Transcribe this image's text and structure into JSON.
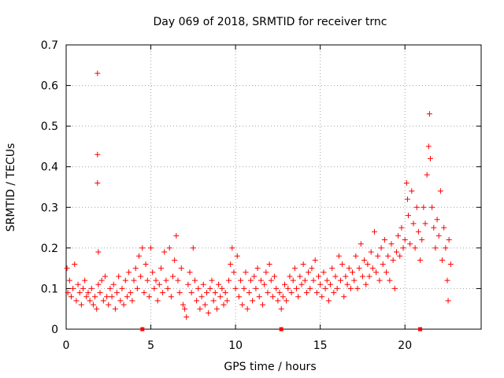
{
  "chart_data": {
    "type": "scatter",
    "title": "Day 069 of 2018, SRMTID for receiver trnc",
    "xlabel": "GPS time / hours",
    "ylabel": "SRMTID / TECUs",
    "xlim": [
      0,
      24.5
    ],
    "ylim": [
      0,
      0.7
    ],
    "xticks": [
      0,
      5,
      10,
      15,
      20
    ],
    "yticks": [
      0,
      0.1,
      0.2,
      0.3,
      0.4,
      0.5,
      0.6,
      0.7
    ],
    "xtick_labels": [
      "0",
      "5",
      "10",
      "15",
      "20"
    ],
    "ytick_labels": [
      "0",
      "0.1",
      "0.2",
      "0.3",
      "0.4",
      "0.5",
      "0.6",
      "0.7"
    ],
    "grid": true,
    "marker": "+",
    "color": "#ff0000",
    "gap_markers_x": [
      4.5,
      12.7,
      20.9
    ],
    "points": [
      [
        0.05,
        0.15
      ],
      [
        0.1,
        0.09
      ],
      [
        0.2,
        0.12
      ],
      [
        0.3,
        0.08
      ],
      [
        0.4,
        0.1
      ],
      [
        0.5,
        0.16
      ],
      [
        0.6,
        0.07
      ],
      [
        0.7,
        0.11
      ],
      [
        0.8,
        0.09
      ],
      [
        0.9,
        0.06
      ],
      [
        1.0,
        0.1
      ],
      [
        1.1,
        0.12
      ],
      [
        1.2,
        0.08
      ],
      [
        1.3,
        0.09
      ],
      [
        1.4,
        0.07
      ],
      [
        1.5,
        0.1
      ],
      [
        1.6,
        0.06
      ],
      [
        1.7,
        0.08
      ],
      [
        1.8,
        0.05
      ],
      [
        1.9,
        0.11
      ],
      [
        1.85,
        0.63
      ],
      [
        1.85,
        0.43
      ],
      [
        1.85,
        0.36
      ],
      [
        1.9,
        0.19
      ],
      [
        2.0,
        0.09
      ],
      [
        2.1,
        0.12
      ],
      [
        2.2,
        0.07
      ],
      [
        2.3,
        0.13
      ],
      [
        2.4,
        0.08
      ],
      [
        2.5,
        0.06
      ],
      [
        2.6,
        0.1
      ],
      [
        2.7,
        0.08
      ],
      [
        2.8,
        0.11
      ],
      [
        2.9,
        0.05
      ],
      [
        3.0,
        0.09
      ],
      [
        3.1,
        0.13
      ],
      [
        3.2,
        0.07
      ],
      [
        3.3,
        0.1
      ],
      [
        3.4,
        0.06
      ],
      [
        3.5,
        0.12
      ],
      [
        3.6,
        0.08
      ],
      [
        3.7,
        0.14
      ],
      [
        3.8,
        0.09
      ],
      [
        3.9,
        0.07
      ],
      [
        4.0,
        0.12
      ],
      [
        4.1,
        0.15
      ],
      [
        4.2,
        0.1
      ],
      [
        4.3,
        0.18
      ],
      [
        4.4,
        0.13
      ],
      [
        4.5,
        0.2
      ],
      [
        4.6,
        0.09
      ],
      [
        4.7,
        0.16
      ],
      [
        4.8,
        0.12
      ],
      [
        4.9,
        0.08
      ],
      [
        5.0,
        0.2
      ],
      [
        5.1,
        0.14
      ],
      [
        5.2,
        0.1
      ],
      [
        5.3,
        0.12
      ],
      [
        5.4,
        0.07
      ],
      [
        5.5,
        0.11
      ],
      [
        5.6,
        0.15
      ],
      [
        5.7,
        0.09
      ],
      [
        5.8,
        0.19
      ],
      [
        5.9,
        0.12
      ],
      [
        6.0,
        0.1
      ],
      [
        6.1,
        0.2
      ],
      [
        6.2,
        0.08
      ],
      [
        6.3,
        0.13
      ],
      [
        6.4,
        0.17
      ],
      [
        6.5,
        0.23
      ],
      [
        6.6,
        0.12
      ],
      [
        6.7,
        0.09
      ],
      [
        6.8,
        0.15
      ],
      [
        6.9,
        0.06
      ],
      [
        7.0,
        0.05
      ],
      [
        7.1,
        0.03
      ],
      [
        7.2,
        0.11
      ],
      [
        7.3,
        0.14
      ],
      [
        7.4,
        0.09
      ],
      [
        7.5,
        0.2
      ],
      [
        7.6,
        0.12
      ],
      [
        7.7,
        0.07
      ],
      [
        7.8,
        0.1
      ],
      [
        7.9,
        0.05
      ],
      [
        8.0,
        0.08
      ],
      [
        8.1,
        0.11
      ],
      [
        8.2,
        0.06
      ],
      [
        8.3,
        0.09
      ],
      [
        8.4,
        0.04
      ],
      [
        8.5,
        0.1
      ],
      [
        8.6,
        0.12
      ],
      [
        8.7,
        0.07
      ],
      [
        8.8,
        0.09
      ],
      [
        8.9,
        0.05
      ],
      [
        9.0,
        0.11
      ],
      [
        9.1,
        0.08
      ],
      [
        9.2,
        0.1
      ],
      [
        9.3,
        0.06
      ],
      [
        9.4,
        0.09
      ],
      [
        9.5,
        0.07
      ],
      [
        9.6,
        0.12
      ],
      [
        9.7,
        0.16
      ],
      [
        9.8,
        0.2
      ],
      [
        9.9,
        0.14
      ],
      [
        10.0,
        0.1
      ],
      [
        10.1,
        0.18
      ],
      [
        10.2,
        0.08
      ],
      [
        10.3,
        0.12
      ],
      [
        10.4,
        0.06
      ],
      [
        10.5,
        0.1
      ],
      [
        10.6,
        0.14
      ],
      [
        10.7,
        0.05
      ],
      [
        10.8,
        0.09
      ],
      [
        10.9,
        0.12
      ],
      [
        11.0,
        0.07
      ],
      [
        11.1,
        0.13
      ],
      [
        11.2,
        0.1
      ],
      [
        11.3,
        0.15
      ],
      [
        11.4,
        0.08
      ],
      [
        11.5,
        0.12
      ],
      [
        11.6,
        0.06
      ],
      [
        11.7,
        0.11
      ],
      [
        11.8,
        0.14
      ],
      [
        11.9,
        0.09
      ],
      [
        12.0,
        0.16
      ],
      [
        12.1,
        0.12
      ],
      [
        12.2,
        0.08
      ],
      [
        12.3,
        0.13
      ],
      [
        12.4,
        0.1
      ],
      [
        12.5,
        0.07
      ],
      [
        12.6,
        0.09
      ],
      [
        12.7,
        0.05
      ],
      [
        12.8,
        0.08
      ],
      [
        12.9,
        0.11
      ],
      [
        13.0,
        0.07
      ],
      [
        13.1,
        0.1
      ],
      [
        13.2,
        0.13
      ],
      [
        13.3,
        0.09
      ],
      [
        13.4,
        0.12
      ],
      [
        13.5,
        0.15
      ],
      [
        13.6,
        0.1
      ],
      [
        13.7,
        0.08
      ],
      [
        13.8,
        0.13
      ],
      [
        13.9,
        0.11
      ],
      [
        14.0,
        0.16
      ],
      [
        14.1,
        0.12
      ],
      [
        14.2,
        0.09
      ],
      [
        14.3,
        0.14
      ],
      [
        14.4,
        0.1
      ],
      [
        14.5,
        0.15
      ],
      [
        14.6,
        0.12
      ],
      [
        14.7,
        0.17
      ],
      [
        14.8,
        0.09
      ],
      [
        14.9,
        0.13
      ],
      [
        15.0,
        0.11
      ],
      [
        15.1,
        0.08
      ],
      [
        15.2,
        0.14
      ],
      [
        15.3,
        0.1
      ],
      [
        15.4,
        0.12
      ],
      [
        15.5,
        0.07
      ],
      [
        15.6,
        0.11
      ],
      [
        15.7,
        0.15
      ],
      [
        15.8,
        0.09
      ],
      [
        15.9,
        0.13
      ],
      [
        16.0,
        0.1
      ],
      [
        16.1,
        0.18
      ],
      [
        16.2,
        0.12
      ],
      [
        16.3,
        0.16
      ],
      [
        16.4,
        0.08
      ],
      [
        16.5,
        0.13
      ],
      [
        16.6,
        0.11
      ],
      [
        16.7,
        0.15
      ],
      [
        16.8,
        0.1
      ],
      [
        16.9,
        0.14
      ],
      [
        17.0,
        0.12
      ],
      [
        17.1,
        0.18
      ],
      [
        17.2,
        0.1
      ],
      [
        17.3,
        0.15
      ],
      [
        17.4,
        0.21
      ],
      [
        17.5,
        0.13
      ],
      [
        17.6,
        0.17
      ],
      [
        17.7,
        0.11
      ],
      [
        17.8,
        0.16
      ],
      [
        17.9,
        0.13
      ],
      [
        18.0,
        0.19
      ],
      [
        18.1,
        0.15
      ],
      [
        18.2,
        0.24
      ],
      [
        18.3,
        0.14
      ],
      [
        18.4,
        0.18
      ],
      [
        18.5,
        0.12
      ],
      [
        18.6,
        0.2
      ],
      [
        18.7,
        0.16
      ],
      [
        18.8,
        0.22
      ],
      [
        18.9,
        0.14
      ],
      [
        19.0,
        0.18
      ],
      [
        19.1,
        0.12
      ],
      [
        19.2,
        0.21
      ],
      [
        19.3,
        0.17
      ],
      [
        19.4,
        0.1
      ],
      [
        19.5,
        0.19
      ],
      [
        19.6,
        0.23
      ],
      [
        19.7,
        0.18
      ],
      [
        19.8,
        0.25
      ],
      [
        19.9,
        0.2
      ],
      [
        20.0,
        0.22
      ],
      [
        20.1,
        0.36
      ],
      [
        20.15,
        0.32
      ],
      [
        20.2,
        0.28
      ],
      [
        20.3,
        0.21
      ],
      [
        20.4,
        0.34
      ],
      [
        20.5,
        0.26
      ],
      [
        20.6,
        0.2
      ],
      [
        20.7,
        0.3
      ],
      [
        20.8,
        0.24
      ],
      [
        20.9,
        0.17
      ],
      [
        21.0,
        0.22
      ],
      [
        21.1,
        0.3
      ],
      [
        21.2,
        0.26
      ],
      [
        21.3,
        0.38
      ],
      [
        21.4,
        0.45
      ],
      [
        21.45,
        0.53
      ],
      [
        21.5,
        0.42
      ],
      [
        21.6,
        0.3
      ],
      [
        21.7,
        0.25
      ],
      [
        21.8,
        0.2
      ],
      [
        21.9,
        0.27
      ],
      [
        22.0,
        0.23
      ],
      [
        22.1,
        0.34
      ],
      [
        22.2,
        0.17
      ],
      [
        22.3,
        0.25
      ],
      [
        22.4,
        0.2
      ],
      [
        22.5,
        0.12
      ],
      [
        22.55,
        0.07
      ],
      [
        22.6,
        0.22
      ],
      [
        22.7,
        0.16
      ]
    ]
  }
}
